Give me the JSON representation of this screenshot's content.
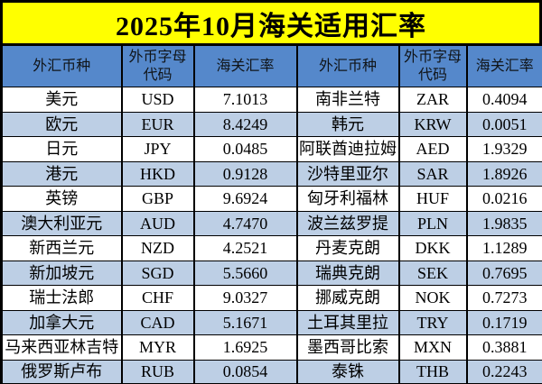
{
  "title": "2025年10月海关适用汇率",
  "colors": {
    "title_background": "#FFFF00",
    "header_background": "#5588CB",
    "band_row_background": "#BDCFE5",
    "border": "#000000",
    "text": "#000000"
  },
  "table": {
    "headers": [
      "外汇币种",
      "外币字母\n代码",
      "海关汇率",
      "外汇币种",
      "外币字母\n代码",
      "海关汇率"
    ],
    "left_rows": [
      {
        "currency": "美元",
        "code": "USD",
        "rate": "7.1013"
      },
      {
        "currency": "欧元",
        "code": "EUR",
        "rate": "8.4249"
      },
      {
        "currency": "日元",
        "code": "JPY",
        "rate": "0.0485"
      },
      {
        "currency": "港元",
        "code": "HKD",
        "rate": "0.9128"
      },
      {
        "currency": "英镑",
        "code": "GBP",
        "rate": "9.6924"
      },
      {
        "currency": "澳大利亚元",
        "code": "AUD",
        "rate": "4.7470"
      },
      {
        "currency": "新西兰元",
        "code": "NZD",
        "rate": "4.2521"
      },
      {
        "currency": "新加坡元",
        "code": "SGD",
        "rate": "5.5660"
      },
      {
        "currency": "瑞士法郎",
        "code": "CHF",
        "rate": "9.0327"
      },
      {
        "currency": "加拿大元",
        "code": "CAD",
        "rate": "5.1671"
      },
      {
        "currency": "马来西亚林吉特",
        "code": "MYR",
        "rate": "1.6925"
      },
      {
        "currency": "俄罗斯卢布",
        "code": "RUB",
        "rate": "0.0854"
      }
    ],
    "right_rows": [
      {
        "currency": "南非兰特",
        "code": "ZAR",
        "rate": "0.4094"
      },
      {
        "currency": "韩元",
        "code": "KRW",
        "rate": "0.0051"
      },
      {
        "currency": "阿联酋迪拉姆",
        "code": "AED",
        "rate": "1.9329"
      },
      {
        "currency": "沙特里亚尔",
        "code": "SAR",
        "rate": "1.8926"
      },
      {
        "currency": "匈牙利福林",
        "code": "HUF",
        "rate": "0.0216"
      },
      {
        "currency": "波兰兹罗提",
        "code": "PLN",
        "rate": "1.9835"
      },
      {
        "currency": "丹麦克朗",
        "code": "DKK",
        "rate": "1.1289"
      },
      {
        "currency": "瑞典克朗",
        "code": "SEK",
        "rate": "0.7695"
      },
      {
        "currency": "挪威克朗",
        "code": "NOK",
        "rate": "0.7273"
      },
      {
        "currency": "土耳其里拉",
        "code": "TRY",
        "rate": "0.1719"
      },
      {
        "currency": "墨西哥比索",
        "code": "MXN",
        "rate": "0.3881"
      },
      {
        "currency": "泰铢",
        "code": "THB",
        "rate": "0.2243"
      }
    ]
  }
}
